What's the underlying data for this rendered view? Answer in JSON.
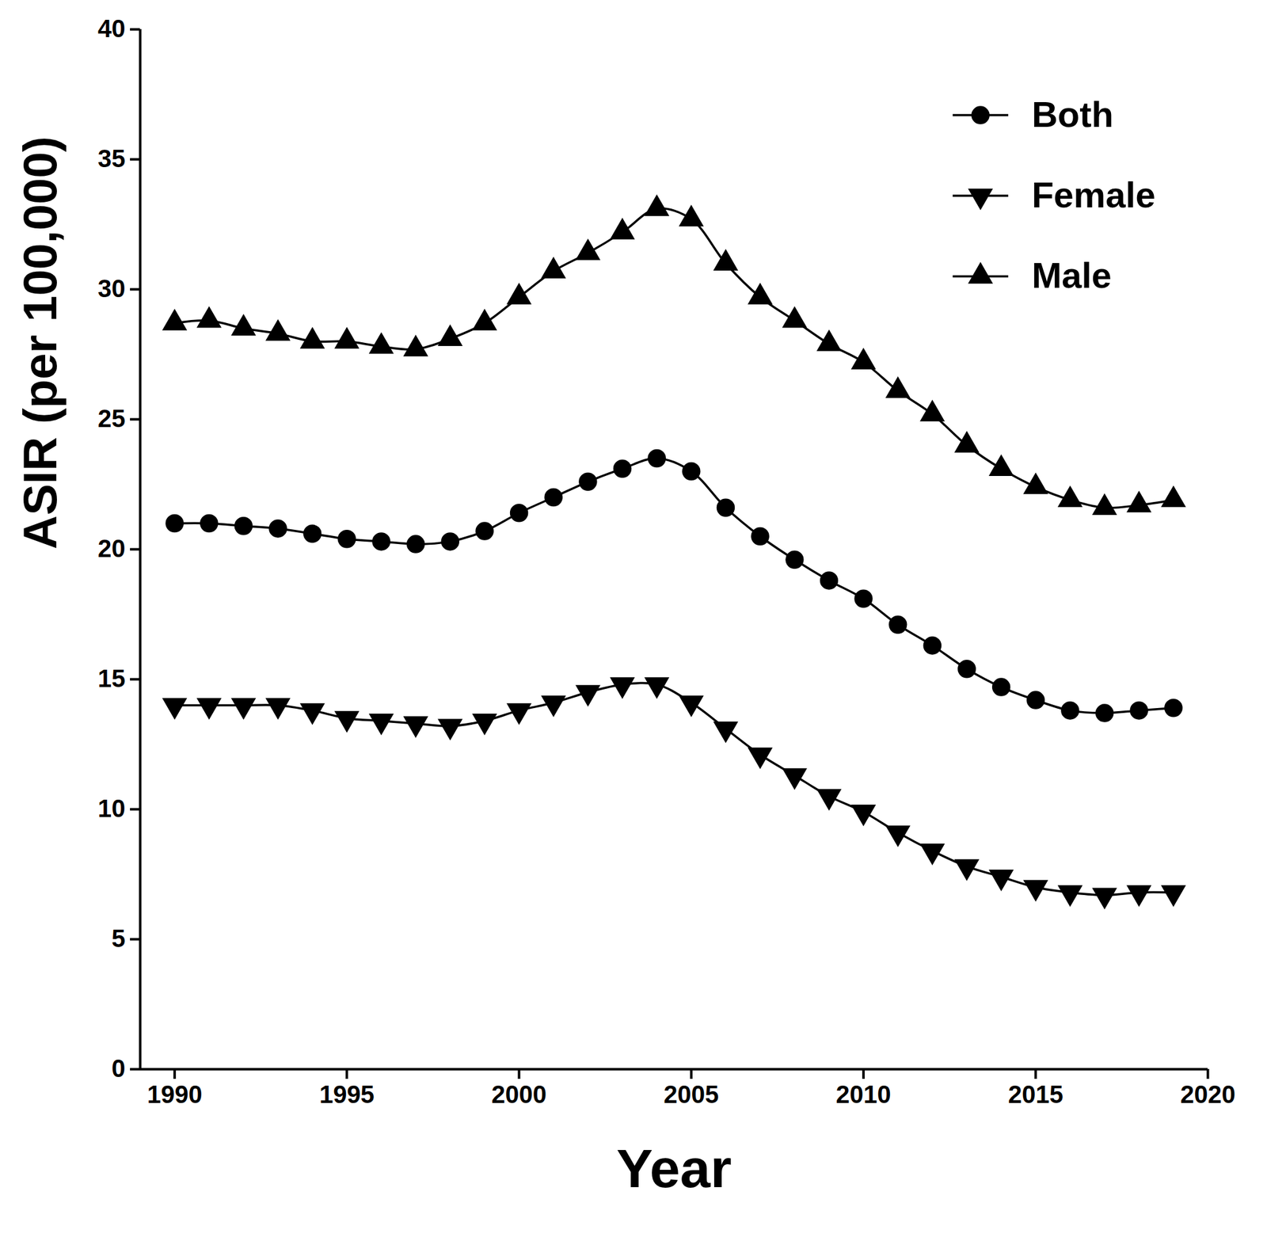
{
  "chart_data": {
    "type": "line",
    "x_label": "Year",
    "y_label": "ASIR (per 100,000)",
    "x": [
      1990,
      1991,
      1992,
      1993,
      1994,
      1995,
      1996,
      1997,
      1998,
      1999,
      2000,
      2001,
      2002,
      2003,
      2004,
      2005,
      2006,
      2007,
      2008,
      2009,
      2010,
      2011,
      2012,
      2013,
      2014,
      2015,
      2016,
      2017,
      2018,
      2019
    ],
    "series": [
      {
        "name": "Both",
        "color": "#000000",
        "marker": "circle",
        "values": [
          21.0,
          21.0,
          20.9,
          20.8,
          20.6,
          20.4,
          20.3,
          20.2,
          20.3,
          20.7,
          21.4,
          22.0,
          22.6,
          23.1,
          23.5,
          23.0,
          21.6,
          20.5,
          19.6,
          18.8,
          18.1,
          17.1,
          16.3,
          15.4,
          14.7,
          14.2,
          13.8,
          13.7,
          13.8,
          13.9
        ]
      },
      {
        "name": "Female",
        "color": "#000000",
        "marker": "triangle-down",
        "values": [
          14.0,
          14.0,
          14.0,
          14.0,
          13.8,
          13.5,
          13.4,
          13.3,
          13.2,
          13.4,
          13.8,
          14.1,
          14.5,
          14.8,
          14.8,
          14.1,
          13.1,
          12.1,
          11.3,
          10.5,
          9.9,
          9.1,
          8.4,
          7.8,
          7.4,
          7.0,
          6.8,
          6.7,
          6.8,
          6.8
        ]
      },
      {
        "name": "Male",
        "color": "#000000",
        "marker": "triangle",
        "values": [
          28.7,
          28.8,
          28.5,
          28.3,
          28.0,
          28.0,
          27.8,
          27.7,
          28.1,
          28.7,
          29.7,
          30.7,
          31.4,
          32.2,
          33.1,
          32.7,
          31.0,
          29.7,
          28.8,
          27.9,
          27.2,
          26.1,
          25.2,
          24.0,
          23.1,
          22.4,
          21.9,
          21.6,
          21.7,
          21.9
        ]
      }
    ],
    "xlim": [
      1989,
      2020
    ],
    "xticks": [
      1990,
      1995,
      2000,
      2005,
      2010,
      2015,
      2020
    ],
    "ylim": [
      0,
      40
    ],
    "yticks": [
      0,
      5,
      10,
      15,
      20,
      25,
      30,
      35,
      40
    ],
    "grid": false,
    "legend": "top-right"
  }
}
